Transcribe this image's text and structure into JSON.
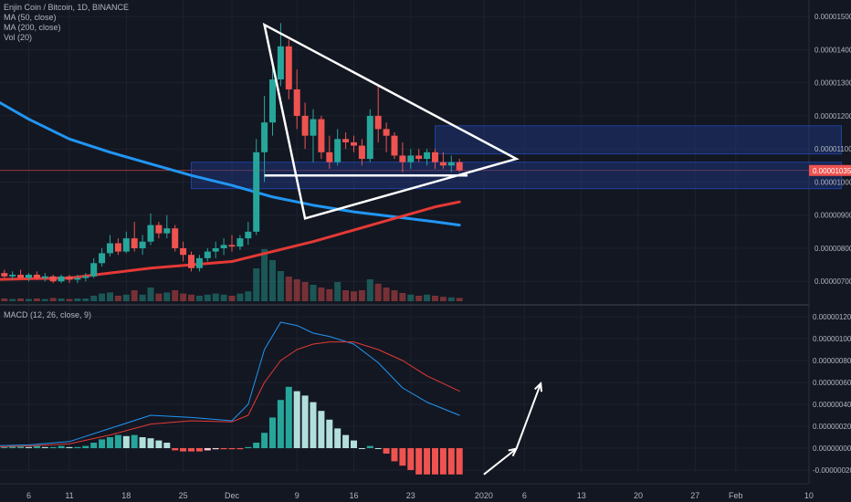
{
  "header": {
    "title": "Enjin Coin / Bitcoin, 1D, BINANCE",
    "indicators": [
      "MA (50, close)",
      "MA (200, close)",
      "Vol (20)"
    ]
  },
  "macd": {
    "label": "MACD (12, 26, close, 9)"
  },
  "price_marker": {
    "label": "0.00001035",
    "value": 1.035e-05,
    "color": "#ef5350"
  },
  "colors": {
    "background": "#131722",
    "grid": "#1e222d",
    "up": "#26a69a",
    "down": "#ef5350",
    "ma50": "#e53935",
    "ma200": "#2196f3",
    "zone": "#1e3a8a",
    "annotation": "#ffffff",
    "hist_pos_strong": "#26a69a",
    "hist_pos_weak": "#b2dfdb",
    "hist_neg_strong": "#ef5350",
    "hist_neg_weak": "#ffcdd2"
  },
  "chart_data": [
    {
      "type": "candlestick",
      "title": "Enjin Coin / Bitcoin, 1D, BINANCE",
      "ylim": [
        6.4e-06,
        1.55e-05
      ],
      "y_ticks": [
        "0.00001500",
        "0.00001400",
        "0.00001300",
        "0.00001200",
        "0.00001100",
        "0.00001000",
        "0.00000900",
        "0.00000800",
        "0.00000700"
      ],
      "y_tick_values": [
        1.5e-05,
        1.4e-05,
        1.3e-05,
        1.2e-05,
        1.1e-05,
        1e-05,
        9e-06,
        8e-06,
        7e-06
      ],
      "x_ticks": [
        "6",
        "11",
        "18",
        "25",
        "Dec",
        "9",
        "16",
        "23",
        "2020",
        "6",
        "13",
        "20",
        "27",
        "Feb",
        "10"
      ],
      "x_tick_days": [
        -25,
        -20,
        -13,
        -6,
        0,
        8,
        15,
        22,
        31,
        36,
        43,
        50,
        57,
        62,
        71
      ],
      "x_origin": "Dec 1, 2019",
      "candles": [
        {
          "d": -30,
          "o": 7.2,
          "h": 7.4,
          "l": 7.05,
          "c": 7.15
        },
        {
          "d": -29,
          "o": 7.15,
          "h": 7.3,
          "l": 7.05,
          "c": 7.25
        },
        {
          "d": -28,
          "o": 7.25,
          "h": 7.35,
          "l": 7.1,
          "c": 7.15
        },
        {
          "d": -27,
          "o": 7.15,
          "h": 7.3,
          "l": 7.05,
          "c": 7.2
        },
        {
          "d": -26,
          "o": 7.2,
          "h": 7.35,
          "l": 7.1,
          "c": 7.1
        },
        {
          "d": -25,
          "o": 7.1,
          "h": 7.25,
          "l": 7.0,
          "c": 7.2
        },
        {
          "d": -24,
          "o": 7.2,
          "h": 7.3,
          "l": 7.05,
          "c": 7.1
        },
        {
          "d": -23,
          "o": 7.1,
          "h": 7.25,
          "l": 7.0,
          "c": 7.15
        },
        {
          "d": -22,
          "o": 7.15,
          "h": 7.2,
          "l": 6.95,
          "c": 7.0
        },
        {
          "d": -21,
          "o": 7.0,
          "h": 7.2,
          "l": 6.95,
          "c": 7.15
        },
        {
          "d": -20,
          "o": 7.15,
          "h": 7.2,
          "l": 6.95,
          "c": 7.05
        },
        {
          "d": -19,
          "o": 7.05,
          "h": 7.2,
          "l": 6.95,
          "c": 7.1
        },
        {
          "d": -18,
          "o": 7.1,
          "h": 7.25,
          "l": 7.0,
          "c": 7.15
        },
        {
          "d": -17,
          "o": 7.15,
          "h": 7.7,
          "l": 7.1,
          "c": 7.55
        },
        {
          "d": -16,
          "o": 7.55,
          "h": 8.0,
          "l": 7.45,
          "c": 7.85
        },
        {
          "d": -15,
          "o": 7.85,
          "h": 8.4,
          "l": 7.75,
          "c": 8.15
        },
        {
          "d": -14,
          "o": 8.15,
          "h": 8.3,
          "l": 7.8,
          "c": 7.9
        },
        {
          "d": -13,
          "o": 7.9,
          "h": 8.5,
          "l": 7.85,
          "c": 8.3
        },
        {
          "d": -12,
          "o": 8.3,
          "h": 8.8,
          "l": 7.9,
          "c": 8.0
        },
        {
          "d": -11,
          "o": 8.0,
          "h": 8.4,
          "l": 7.8,
          "c": 8.2
        },
        {
          "d": -10,
          "o": 8.2,
          "h": 9.05,
          "l": 8.1,
          "c": 8.7
        },
        {
          "d": -9,
          "o": 8.7,
          "h": 8.8,
          "l": 8.3,
          "c": 8.45
        },
        {
          "d": -8,
          "o": 8.45,
          "h": 9.0,
          "l": 8.3,
          "c": 8.6
        },
        {
          "d": -7,
          "o": 8.6,
          "h": 8.7,
          "l": 7.9,
          "c": 8.0
        },
        {
          "d": -6,
          "o": 8.0,
          "h": 8.2,
          "l": 7.6,
          "c": 7.8
        },
        {
          "d": -5,
          "o": 7.8,
          "h": 7.9,
          "l": 7.3,
          "c": 7.4
        },
        {
          "d": -4,
          "o": 7.4,
          "h": 7.8,
          "l": 7.3,
          "c": 7.7
        },
        {
          "d": -3,
          "o": 7.7,
          "h": 8.0,
          "l": 7.6,
          "c": 7.9
        },
        {
          "d": -2,
          "o": 7.9,
          "h": 8.2,
          "l": 7.7,
          "c": 8.0
        },
        {
          "d": -1,
          "o": 8.0,
          "h": 8.3,
          "l": 7.8,
          "c": 8.1
        },
        {
          "d": 0,
          "o": 8.1,
          "h": 8.4,
          "l": 7.9,
          "c": 8.05
        },
        {
          "d": 1,
          "o": 8.05,
          "h": 8.4,
          "l": 7.95,
          "c": 8.3
        },
        {
          "d": 2,
          "o": 8.3,
          "h": 8.8,
          "l": 8.1,
          "c": 8.5
        },
        {
          "d": 3,
          "o": 8.5,
          "h": 11.3,
          "l": 8.4,
          "c": 10.9
        },
        {
          "d": 4,
          "o": 10.9,
          "h": 12.6,
          "l": 10.0,
          "c": 11.8
        },
        {
          "d": 5,
          "o": 11.8,
          "h": 13.5,
          "l": 11.4,
          "c": 13.1
        },
        {
          "d": 6,
          "o": 13.1,
          "h": 14.8,
          "l": 12.9,
          "c": 14.1
        },
        {
          "d": 7,
          "o": 14.1,
          "h": 14.3,
          "l": 12.5,
          "c": 12.8
        },
        {
          "d": 8,
          "o": 12.8,
          "h": 13.4,
          "l": 11.6,
          "c": 12.0
        },
        {
          "d": 9,
          "o": 12.0,
          "h": 12.4,
          "l": 11.0,
          "c": 11.4
        },
        {
          "d": 10,
          "o": 11.4,
          "h": 12.2,
          "l": 10.6,
          "c": 11.9
        },
        {
          "d": 11,
          "o": 11.9,
          "h": 12.0,
          "l": 10.7,
          "c": 10.9
        },
        {
          "d": 12,
          "o": 10.9,
          "h": 11.4,
          "l": 10.4,
          "c": 10.6
        },
        {
          "d": 13,
          "o": 10.6,
          "h": 11.6,
          "l": 10.5,
          "c": 11.3
        },
        {
          "d": 14,
          "o": 11.3,
          "h": 11.5,
          "l": 11.0,
          "c": 11.2
        },
        {
          "d": 15,
          "o": 11.2,
          "h": 11.4,
          "l": 10.9,
          "c": 11.1
        },
        {
          "d": 16,
          "o": 11.1,
          "h": 11.3,
          "l": 10.5,
          "c": 10.7
        },
        {
          "d": 17,
          "o": 10.7,
          "h": 12.2,
          "l": 10.6,
          "c": 12.0
        },
        {
          "d": 18,
          "o": 12.0,
          "h": 12.9,
          "l": 11.2,
          "c": 11.6
        },
        {
          "d": 19,
          "o": 11.6,
          "h": 11.8,
          "l": 10.9,
          "c": 11.4
        },
        {
          "d": 20,
          "o": 11.4,
          "h": 11.5,
          "l": 10.7,
          "c": 10.8
        },
        {
          "d": 21,
          "o": 10.8,
          "h": 11.2,
          "l": 10.3,
          "c": 10.6
        },
        {
          "d": 22,
          "o": 10.6,
          "h": 11.0,
          "l": 10.4,
          "c": 10.8
        },
        {
          "d": 23,
          "o": 10.8,
          "h": 11.0,
          "l": 10.6,
          "c": 10.7
        },
        {
          "d": 24,
          "o": 10.7,
          "h": 11.0,
          "l": 10.5,
          "c": 10.9
        },
        {
          "d": 25,
          "o": 10.9,
          "h": 11.0,
          "l": 10.4,
          "c": 10.6
        },
        {
          "d": 26,
          "o": 10.6,
          "h": 10.9,
          "l": 10.4,
          "c": 10.5
        },
        {
          "d": 27,
          "o": 10.5,
          "h": 10.8,
          "l": 10.3,
          "c": 10.6
        },
        {
          "d": 28,
          "o": 10.6,
          "h": 10.7,
          "l": 10.3,
          "c": 10.35
        }
      ],
      "ma50": {
        "name": "MA (50, close)",
        "x": [
          -30,
          -25,
          -20,
          -15,
          -10,
          -5,
          0,
          5,
          10,
          15,
          20,
          25,
          28
        ],
        "y": [
          7.05,
          7.08,
          7.1,
          7.25,
          7.4,
          7.5,
          7.6,
          7.9,
          8.2,
          8.55,
          8.9,
          9.25,
          9.4
        ]
      },
      "ma200": {
        "name": "MA (200, close)",
        "x": [
          -30,
          -25,
          -20,
          -15,
          -10,
          -5,
          0,
          5,
          10,
          15,
          20,
          25,
          28
        ],
        "y": [
          12.6,
          11.9,
          11.3,
          10.9,
          10.55,
          10.2,
          9.9,
          9.55,
          9.3,
          9.1,
          8.95,
          8.8,
          8.7
        ]
      },
      "volume": {
        "name": "Vol (20)",
        "ratio": [
          0.05,
          0.04,
          0.05,
          0.04,
          0.05,
          0.04,
          0.05,
          0.04,
          0.06,
          0.05,
          0.04,
          0.05,
          0.05,
          0.1,
          0.14,
          0.16,
          0.1,
          0.12,
          0.2,
          0.12,
          0.25,
          0.14,
          0.16,
          0.2,
          0.14,
          0.12,
          0.1,
          0.12,
          0.14,
          0.12,
          0.1,
          0.14,
          0.18,
          0.6,
          0.95,
          0.75,
          0.55,
          0.45,
          0.4,
          0.35,
          0.3,
          0.25,
          0.22,
          0.35,
          0.2,
          0.18,
          0.2,
          0.4,
          0.32,
          0.25,
          0.2,
          0.15,
          0.12,
          0.1,
          0.12,
          0.1,
          0.08,
          0.07,
          0.06
        ]
      },
      "zones": [
        {
          "y_from": 10.85,
          "y_to": 11.7,
          "x_from": 25,
          "x_to": 75
        },
        {
          "y_from": 9.8,
          "y_to": 10.6,
          "x_from": -5,
          "x_to": 75
        }
      ],
      "triangle": {
        "x": [
          4,
          9,
          35
        ],
        "y": [
          14.75,
          8.9,
          10.7
        ]
      },
      "support_line": {
        "x_from": 4,
        "x_to": 29,
        "y": 10.2
      }
    },
    {
      "type": "macd",
      "title": "MACD (12, 26, close, 9)",
      "ylim": [
        -2.25e-07,
        1.275e-06
      ],
      "y_ticks": [
        "0.00000120",
        "0.00000100",
        "0.00000080",
        "0.00000060",
        "0.00000040",
        "0.00000020",
        "0.00000000",
        "-0.00000020"
      ],
      "y_tick_values": [
        1.2e-06,
        1e-06,
        8e-07,
        6e-07,
        4e-07,
        2e-07,
        0,
        -2e-07
      ],
      "macd_line": {
        "x": [
          -30,
          -25,
          -20,
          -15,
          -10,
          -5,
          0,
          2,
          4,
          6,
          8,
          10,
          12,
          15,
          18,
          21,
          24,
          28
        ],
        "y": [
          0.02,
          0.03,
          0.06,
          0.18,
          0.3,
          0.28,
          0.25,
          0.4,
          0.9,
          1.15,
          1.12,
          1.05,
          1.02,
          0.95,
          0.78,
          0.55,
          0.42,
          0.3
        ]
      },
      "signal_line": {
        "x": [
          -30,
          -25,
          -20,
          -15,
          -10,
          -5,
          0,
          2,
          4,
          6,
          8,
          10,
          12,
          15,
          18,
          21,
          24,
          28
        ],
        "y": [
          0.01,
          0.02,
          0.04,
          0.12,
          0.22,
          0.25,
          0.24,
          0.3,
          0.6,
          0.8,
          0.9,
          0.95,
          0.97,
          0.97,
          0.9,
          0.8,
          0.66,
          0.52
        ]
      },
      "histogram": [
        0.0,
        0.01,
        0.01,
        0.02,
        0.02,
        0.01,
        0.02,
        0.01,
        0.01,
        0.02,
        0.01,
        0.01,
        0.02,
        0.05,
        0.08,
        0.1,
        0.12,
        0.11,
        0.12,
        0.1,
        0.09,
        0.07,
        0.05,
        -0.02,
        -0.03,
        -0.03,
        -0.03,
        -0.02,
        -0.01,
        -0.01,
        -0.01,
        -0.01,
        0.01,
        0.05,
        0.14,
        0.28,
        0.44,
        0.56,
        0.52,
        0.48,
        0.42,
        0.34,
        0.26,
        0.18,
        0.12,
        0.07,
        0.0,
        0.02,
        0.0,
        -0.05,
        -0.12,
        -0.16,
        -0.2,
        -0.24,
        -0.24,
        -0.24,
        -0.24,
        -0.24,
        -0.24
      ],
      "arrow": {
        "from": [
          31,
          -0.24
        ],
        "to": [
          35,
          -0.005
        ]
      },
      "arrow2": {
        "from": [
          35,
          -0.005
        ],
        "to": [
          38,
          0.59
        ]
      }
    }
  ]
}
